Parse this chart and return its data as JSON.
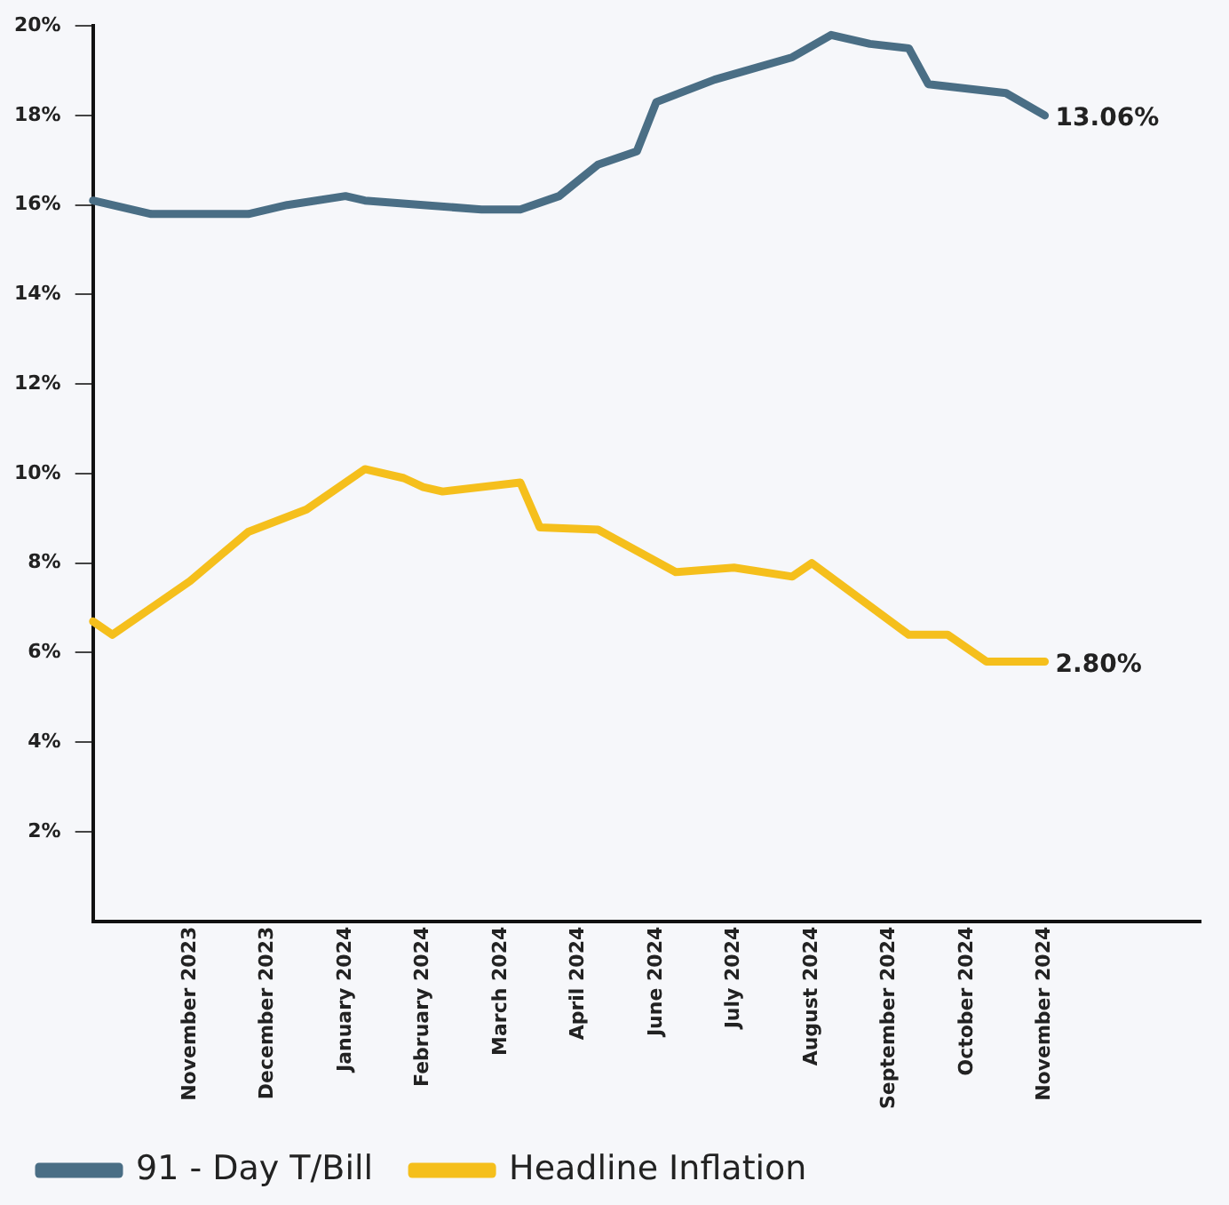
{
  "chart_data": {
    "type": "line",
    "marker": "none",
    "line_style": "solid",
    "grid": false,
    "legend": "bottom left",
    "categories": [
      null,
      null,
      null,
      null,
      null,
      "November 2023",
      null,
      null,
      null,
      "December 2023",
      null,
      null,
      null,
      "January 2024",
      null,
      null,
      null,
      "February 2024",
      null,
      null,
      null,
      "March 2024",
      null,
      null,
      null,
      "April 2024",
      null,
      null,
      null,
      "June 2024",
      null,
      null,
      null,
      "July 2024",
      null,
      null,
      null,
      "August 2024",
      null,
      null,
      null,
      "September 2024",
      null,
      null,
      null,
      "October 2024",
      null,
      null,
      null,
      "November 2024",
      null,
      null,
      null,
      null,
      null,
      null,
      null,
      null
    ],
    "ylim": [
      0,
      20
    ],
    "yticks": [
      {
        "value": 2,
        "label": "2%"
      },
      {
        "value": 4,
        "label": "4%"
      },
      {
        "value": 6,
        "label": "6%"
      },
      {
        "value": 8,
        "label": "8%"
      },
      {
        "value": 10,
        "label": "10%"
      },
      {
        "value": 12,
        "label": "12%"
      },
      {
        "value": 14,
        "label": "14%"
      },
      {
        "value": 16,
        "label": "16%"
      },
      {
        "value": 18,
        "label": "18%"
      },
      {
        "value": 20,
        "label": "20%"
      }
    ],
    "annotations": [
      {
        "text": "13.06%",
        "x": "November 2024",
        "y": 18.0
      },
      {
        "text": "2.80%",
        "x": "November 2024",
        "y": 5.8
      }
    ],
    "series": [
      {
        "name": "91 - Day T/Bill",
        "color": "#4a6e85",
        "values": [
          16.1,
          null,
          null,
          15.8,
          null,
          null,
          null,
          null,
          15.8,
          null,
          16.0,
          null,
          null,
          16.2,
          16.1,
          null,
          null,
          16.0,
          null,
          null,
          15.9,
          null,
          15.9,
          null,
          16.2,
          null,
          16.9,
          null,
          17.2,
          18.3,
          null,
          null,
          18.8,
          null,
          null,
          null,
          19.3,
          null,
          19.8,
          null,
          19.6,
          null,
          19.5,
          18.7,
          null,
          null,
          null,
          18.5,
          null,
          18.0,
          null,
          null,
          null,
          null,
          null,
          null,
          null,
          null
        ]
      },
      {
        "name": "Headline Inflation",
        "color": "#f5bf1c",
        "values": [
          6.7,
          6.4,
          null,
          7.0,
          null,
          7.6,
          null,
          null,
          8.7,
          null,
          null,
          9.2,
          null,
          null,
          10.1,
          null,
          9.9,
          9.7,
          9.6,
          null,
          null,
          null,
          9.8,
          8.8,
          null,
          null,
          8.75,
          null,
          null,
          null,
          7.8,
          null,
          null,
          7.9,
          null,
          null,
          7.7,
          8.0,
          null,
          null,
          null,
          null,
          6.4,
          null,
          6.4,
          null,
          5.8,
          null,
          null,
          5.8,
          null,
          null,
          null,
          null,
          null,
          null,
          null,
          null
        ]
      }
    ]
  }
}
